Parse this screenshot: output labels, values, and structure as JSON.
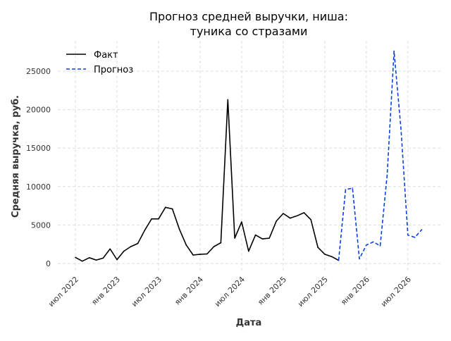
{
  "chart_data": {
    "type": "line",
    "title_line1": "Прогноз средней выручки, ниша:",
    "title_line2": "туника со стразами",
    "xlabel": "Дата",
    "ylabel": "Средняя выручка, руб.",
    "ylim": [
      -1500,
      29000
    ],
    "yticks": [
      0,
      5000,
      10000,
      15000,
      20000,
      25000
    ],
    "xticks": [
      {
        "month_index": 0,
        "label": "июл 2022"
      },
      {
        "month_index": 6,
        "label": "янв 2023"
      },
      {
        "month_index": 12,
        "label": "июл 2023"
      },
      {
        "month_index": 18,
        "label": "янв 2024"
      },
      {
        "month_index": 24,
        "label": "июл 2024"
      },
      {
        "month_index": 30,
        "label": "янв 2025"
      },
      {
        "month_index": 36,
        "label": "июл 2025"
      },
      {
        "month_index": 42,
        "label": "янв 2026"
      },
      {
        "month_index": 48,
        "label": "июл 2026"
      }
    ],
    "grid": true,
    "legend_position": "top-left",
    "series": [
      {
        "name": "Факт",
        "color": "#000000",
        "style": "solid",
        "start_month_index": 0,
        "values": [
          800,
          300,
          750,
          450,
          700,
          1900,
          500,
          1600,
          2200,
          2600,
          4300,
          5800,
          5800,
          7300,
          7100,
          4500,
          2400,
          1100,
          1200,
          1250,
          2200,
          2700,
          21300,
          3300,
          5400,
          1600,
          3700,
          3200,
          3300,
          5500,
          6500,
          5900,
          6200,
          6600,
          5700,
          2100,
          1200,
          900,
          400
        ]
      },
      {
        "name": "Прогноз",
        "color": "#0a3fe0",
        "style": "dashed",
        "start_month_index": 38,
        "values": [
          400,
          9600,
          9800,
          600,
          2400,
          2800,
          2300,
          11500,
          27600,
          17500,
          3700,
          3400,
          4400
        ]
      }
    ]
  }
}
